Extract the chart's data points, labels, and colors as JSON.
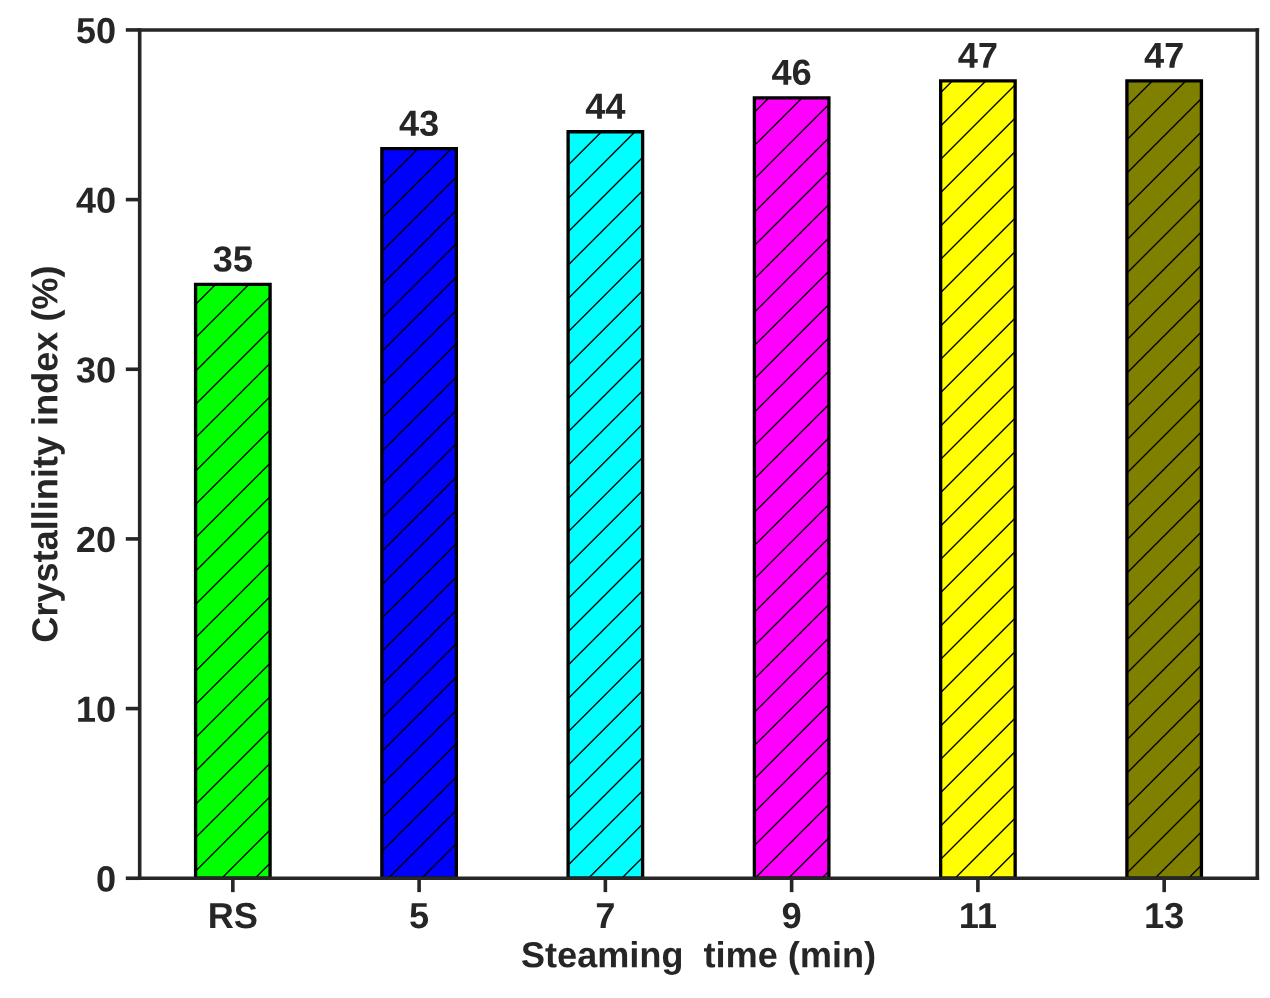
{
  "chart_data": {
    "type": "bar",
    "xlabel": "Steaming  time (min)",
    "ylabel": "Crystallinity index (%)",
    "categories": [
      "RS",
      "5",
      "7",
      "9",
      "11",
      "13"
    ],
    "values": [
      35,
      43,
      44,
      46,
      47,
      47
    ],
    "colors": [
      "#00ff00",
      "#0000ff",
      "#00ffff",
      "#ff00ff",
      "#ffff00",
      "#808000"
    ],
    "ylim": [
      0,
      50
    ],
    "yticks": [
      0,
      10,
      20,
      30,
      40,
      50
    ],
    "data_labels": true,
    "grid": false,
    "legend": false
  }
}
